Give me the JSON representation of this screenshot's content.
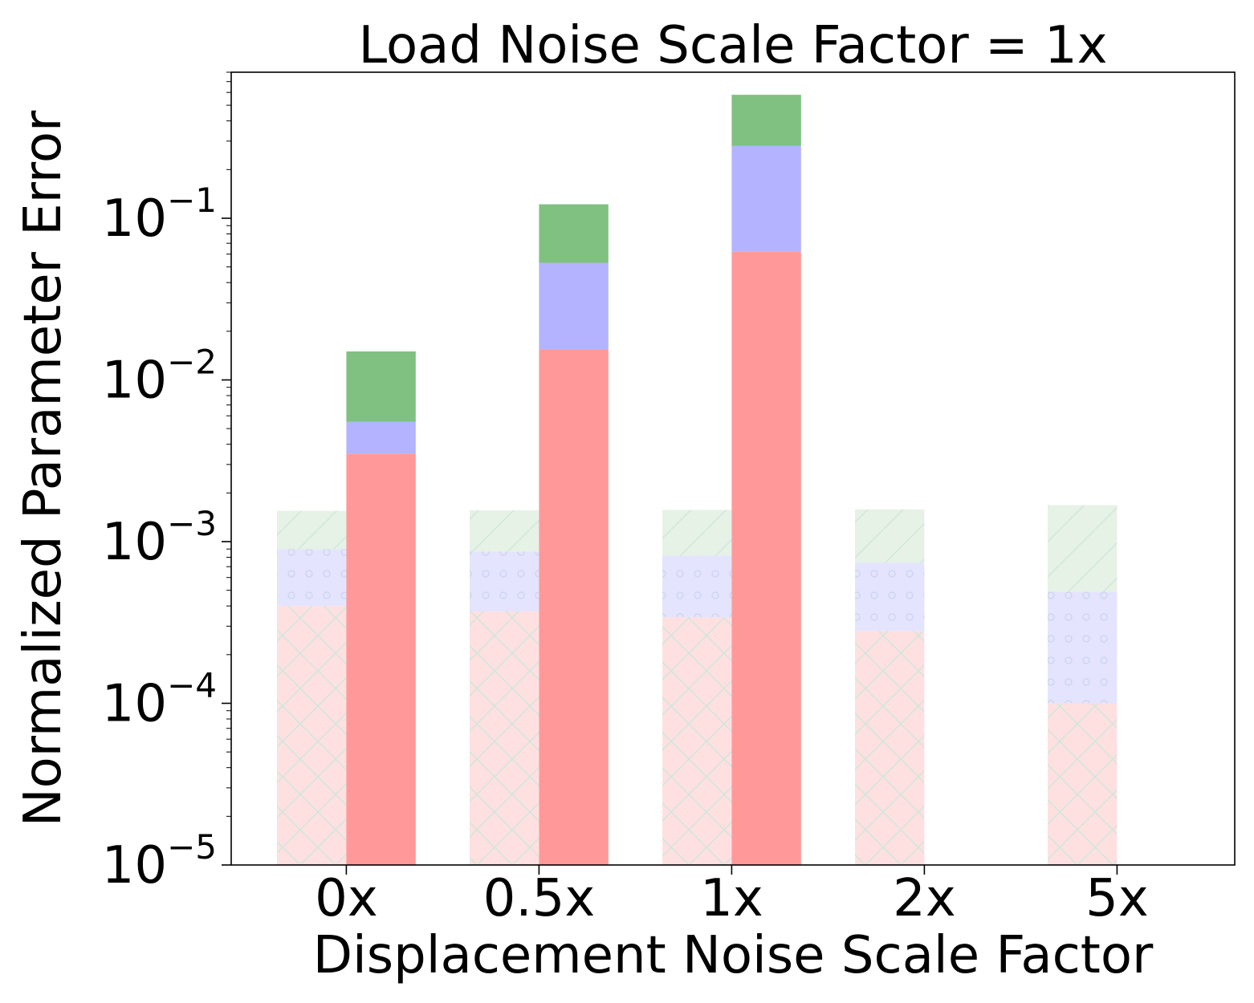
{
  "chart_data": {
    "type": "bar",
    "stacked": true,
    "title": "Load Noise Scale Factor = 1x",
    "xlabel": "Displacement Noise Scale Factor",
    "ylabel": "Normalized Parameter Error",
    "yscale": "log",
    "ylim": [
      1e-05,
      0.8
    ],
    "categories": [
      "0x",
      "0.5x",
      "1x",
      "2x",
      "5x"
    ],
    "yticks": [
      {
        "value": 1e-05,
        "base": "10",
        "exp": "−5"
      },
      {
        "value": 0.0001,
        "base": "10",
        "exp": "−4"
      },
      {
        "value": 0.001,
        "base": "10",
        "exp": "−3"
      },
      {
        "value": 0.01,
        "base": "10",
        "exp": "−2"
      },
      {
        "value": 0.1,
        "base": "10",
        "exp": "−1"
      }
    ],
    "groups": [
      {
        "style": "hatched-light",
        "segments": [
          {
            "color": "#ffe0e0",
            "hatch": "cross",
            "tops": [
              0.0004,
              0.00037,
              0.00034,
              0.00028,
              0.0001
            ]
          },
          {
            "color": "#e4e4ff",
            "hatch": "dots",
            "tops": [
              0.0009,
              0.00087,
              0.00082,
              0.00074,
              0.00049
            ]
          },
          {
            "color": "#e6f2e6",
            "hatch": "diagonal",
            "tops": [
              0.00155,
              0.00156,
              0.00157,
              0.00158,
              0.00168
            ]
          }
        ]
      },
      {
        "style": "solid",
        "segments": [
          {
            "color": "#ff9999",
            "hatch": "none",
            "tops": [
              0.0035,
              0.0155,
              0.062,
              null,
              null
            ]
          },
          {
            "color": "#b3b3ff",
            "hatch": "none",
            "tops": [
              0.0055,
              0.053,
              0.28,
              null,
              null
            ]
          },
          {
            "color": "#80c080",
            "hatch": "none",
            "tops": [
              0.015,
              0.122,
              0.58,
              null,
              null
            ]
          }
        ]
      }
    ]
  }
}
